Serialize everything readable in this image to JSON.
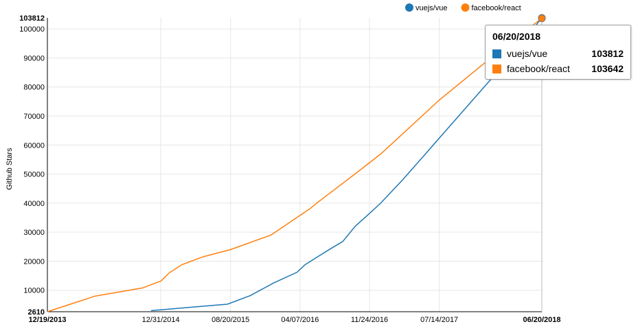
{
  "chart_data": {
    "type": "line",
    "ylabel": "Github Stars",
    "xlabel": "",
    "ylim": [
      2610,
      103812
    ],
    "y_ticks": [
      10000,
      20000,
      30000,
      40000,
      50000,
      60000,
      70000,
      80000,
      90000,
      100000
    ],
    "y_bound_labels": {
      "min": "2610",
      "max": "103812"
    },
    "x_ticks": [
      {
        "label": "12/19/2013",
        "date": "2013-12-19",
        "bold": true
      },
      {
        "label": "12/31/2014",
        "date": "2014-12-31",
        "bold": false
      },
      {
        "label": "08/20/2015",
        "date": "2015-08-20",
        "bold": false
      },
      {
        "label": "04/07/2016",
        "date": "2016-04-07",
        "bold": false
      },
      {
        "label": "11/24/2016",
        "date": "2016-11-24",
        "bold": false
      },
      {
        "label": "07/14/2017",
        "date": "2017-07-14",
        "bold": false
      },
      {
        "label": "06/20/2018",
        "date": "2018-06-20",
        "bold": true
      }
    ],
    "xlim": [
      "2013-12-19",
      "2018-06-20"
    ],
    "legend_position": "top-right",
    "grid": true,
    "series": [
      {
        "name": "vuejs/vue",
        "color": "#1f77b4",
        "points": [
          [
            "2014-11-29",
            3000
          ],
          [
            "2015-08-10",
            5200
          ],
          [
            "2015-10-25",
            8200
          ],
          [
            "2016-01-10",
            12500
          ],
          [
            "2016-03-28",
            16200
          ],
          [
            "2016-04-24",
            18800
          ],
          [
            "2016-06-04",
            21500
          ],
          [
            "2016-07-16",
            24200
          ],
          [
            "2016-08-27",
            26800
          ],
          [
            "2016-10-08",
            32100
          ],
          [
            "2016-11-19",
            36000
          ],
          [
            "2016-12-31",
            40000
          ],
          [
            "2017-03-14",
            48000
          ],
          [
            "2017-05-25",
            56500
          ],
          [
            "2017-08-05",
            65000
          ],
          [
            "2017-10-16",
            73500
          ],
          [
            "2017-12-27",
            82000
          ],
          [
            "2018-03-09",
            90500
          ],
          [
            "2018-06-20",
            103812
          ]
        ]
      },
      {
        "name": "facebook/react",
        "color": "#ff7f0e",
        "points": [
          [
            "2013-12-19",
            2610
          ],
          [
            "2014-05-27",
            8000
          ],
          [
            "2014-10-31",
            10800
          ],
          [
            "2015-01-01",
            13200
          ],
          [
            "2015-01-28",
            16000
          ],
          [
            "2015-03-11",
            18800
          ],
          [
            "2015-05-20",
            21500
          ],
          [
            "2015-08-20",
            24000
          ],
          [
            "2016-01-01",
            29000
          ],
          [
            "2016-02-16",
            32200
          ],
          [
            "2016-03-28",
            35100
          ],
          [
            "2016-05-09",
            38000
          ],
          [
            "2016-06-01",
            40000
          ],
          [
            "2016-10-06",
            50000
          ],
          [
            "2017-01-01",
            57000
          ],
          [
            "2017-07-14",
            75500
          ],
          [
            "2018-03-01",
            95000
          ],
          [
            "2018-06-20",
            103642
          ]
        ]
      }
    ],
    "tooltip": {
      "date": "06/20/2018",
      "rows": [
        {
          "name": "vuejs/vue",
          "value": "103812",
          "color": "#1f77b4"
        },
        {
          "name": "facebook/react",
          "value": "103642",
          "color": "#ff7f0e"
        }
      ]
    }
  }
}
